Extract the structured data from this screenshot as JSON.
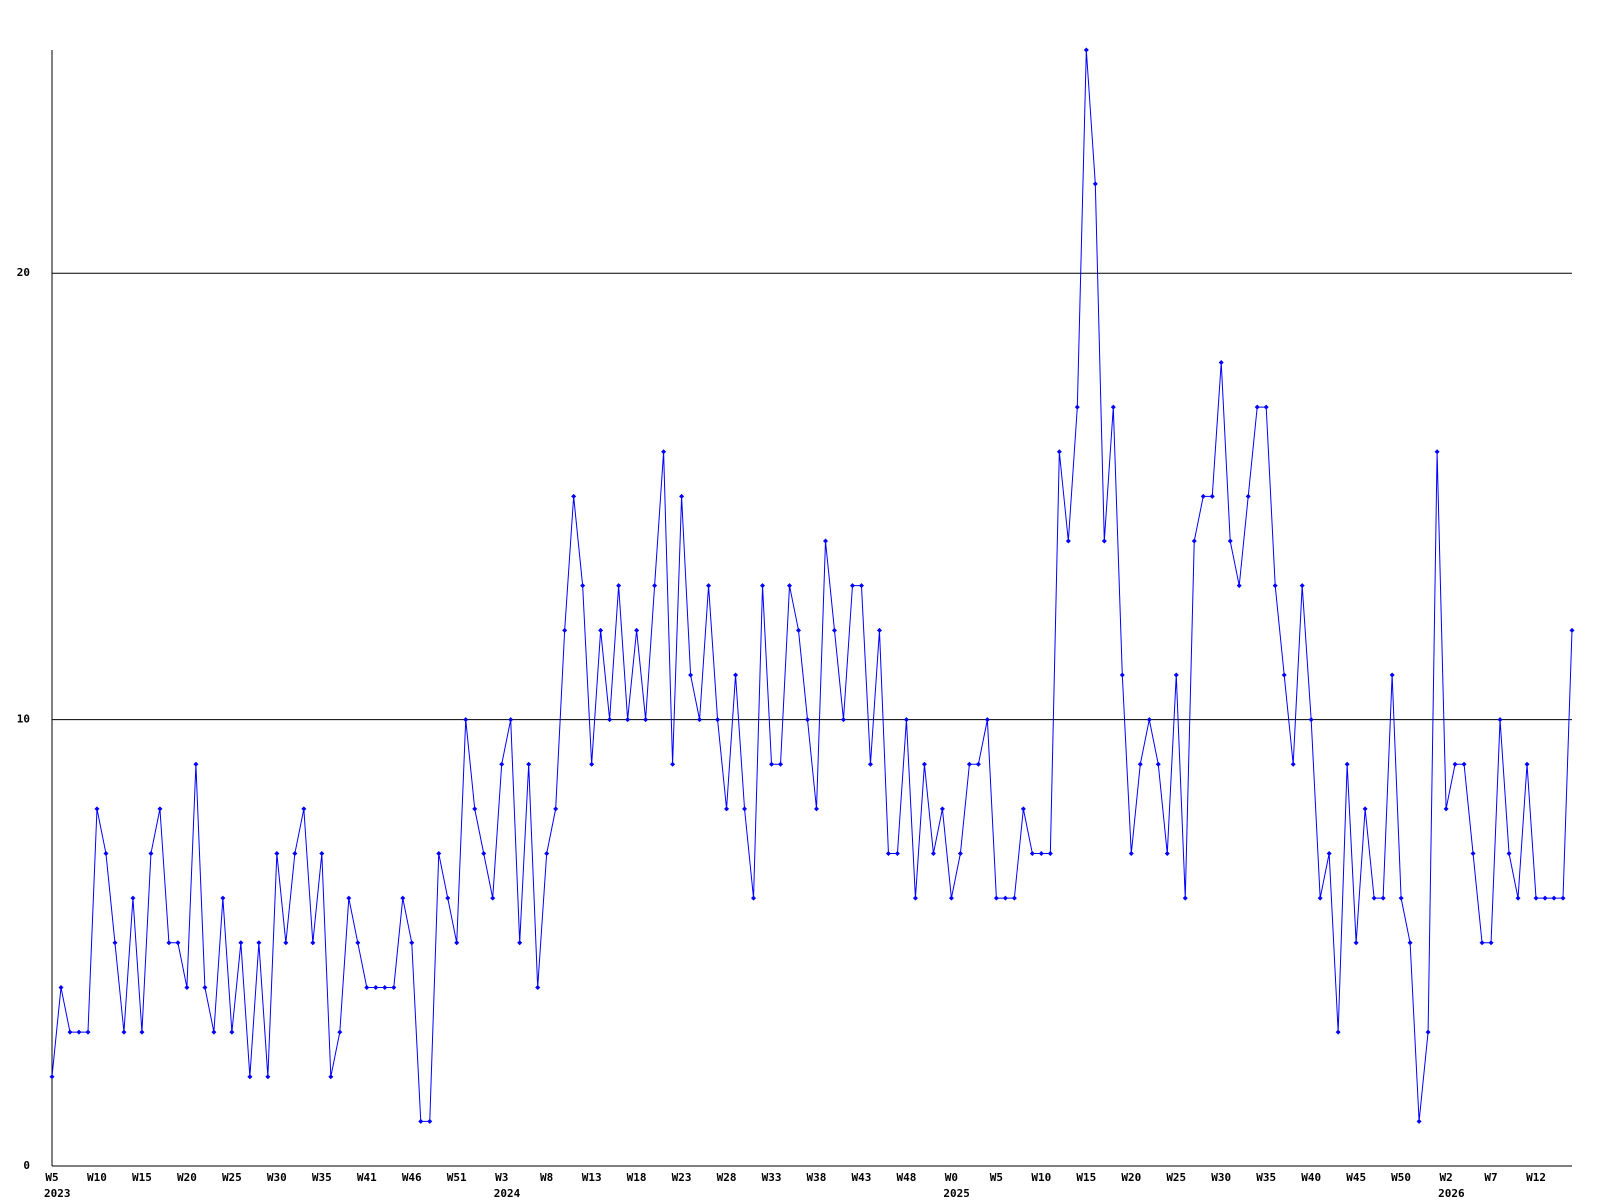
{
  "chart_data": {
    "type": "line",
    "color": "#0000ff",
    "ylim": [
      0,
      25
    ],
    "yticks": [
      0,
      10,
      20
    ],
    "grid": true,
    "categories": [
      "W5",
      null,
      null,
      null,
      null,
      "W10",
      null,
      null,
      null,
      null,
      "W15",
      null,
      null,
      null,
      null,
      "W20",
      null,
      null,
      null,
      null,
      "W25",
      null,
      null,
      null,
      null,
      "W30",
      null,
      null,
      null,
      null,
      "W35",
      null,
      null,
      null,
      null,
      "W41",
      null,
      null,
      null,
      null,
      "W46",
      null,
      null,
      null,
      null,
      "W51",
      null,
      null,
      null,
      null,
      "W3",
      null,
      null,
      null,
      null,
      "W8",
      null,
      null,
      null,
      null,
      "W13",
      null,
      null,
      null,
      null,
      "W18",
      null,
      null,
      null,
      null,
      "W23",
      null,
      null,
      null,
      null,
      "W28",
      null,
      null,
      null,
      null,
      "W33",
      null,
      null,
      null,
      null,
      "W38",
      null,
      null,
      null,
      null,
      "W43",
      null,
      null,
      null,
      null,
      "W48",
      null,
      null,
      null,
      null,
      "W0",
      null,
      null,
      null,
      null,
      "W5",
      null,
      null,
      null,
      null,
      "W10",
      null,
      null,
      null,
      null,
      "W15",
      null,
      null,
      null,
      null,
      "W20",
      null,
      null,
      null,
      null,
      "W25",
      null,
      null,
      null,
      null,
      "W30",
      null,
      null,
      null,
      null,
      "W35",
      null,
      null,
      null,
      null,
      "W40",
      null,
      null,
      null,
      null,
      "W45",
      null,
      null,
      null,
      null,
      "W50",
      null,
      null,
      null,
      null,
      "W2",
      null,
      null,
      null,
      null,
      "W7",
      null,
      null,
      null,
      null,
      "W12",
      null,
      null,
      null,
      null
    ],
    "category_years": [
      "2023",
      null,
      null,
      null,
      null,
      null,
      null,
      null,
      null,
      null,
      null,
      null,
      null,
      null,
      null,
      null,
      null,
      null,
      null,
      null,
      null,
      null,
      null,
      null,
      null,
      null,
      null,
      null,
      null,
      null,
      null,
      null,
      null,
      null,
      null,
      null,
      null,
      null,
      null,
      null,
      null,
      null,
      null,
      null,
      null,
      null,
      null,
      null,
      null,
      null,
      "2024",
      null,
      null,
      null,
      null,
      null,
      null,
      null,
      null,
      null,
      null,
      null,
      null,
      null,
      null,
      null,
      null,
      null,
      null,
      null,
      null,
      null,
      null,
      null,
      null,
      null,
      null,
      null,
      null,
      null,
      null,
      null,
      null,
      null,
      null,
      null,
      null,
      null,
      null,
      null,
      null,
      null,
      null,
      null,
      null,
      null,
      null,
      null,
      null,
      null,
      "2025",
      null,
      null,
      null,
      null,
      null,
      null,
      null,
      null,
      null,
      null,
      null,
      null,
      null,
      null,
      null,
      null,
      null,
      null,
      null,
      null,
      null,
      null,
      null,
      null,
      null,
      null,
      null,
      null,
      null,
      null,
      null,
      null,
      null,
      null,
      null,
      null,
      null,
      null,
      null,
      null,
      null,
      null,
      null,
      null,
      null,
      null,
      null,
      null,
      null,
      null,
      null,
      null,
      null,
      null,
      "2026",
      null,
      null,
      null,
      null,
      null,
      null,
      null,
      null,
      null,
      null,
      null,
      null,
      null,
      null
    ],
    "values": [
      2,
      4,
      3,
      3,
      3,
      8,
      7,
      5,
      3,
      6,
      3,
      7,
      8,
      5,
      5,
      4,
      9,
      4,
      3,
      6,
      3,
      5,
      2,
      5,
      2,
      7,
      5,
      7,
      8,
      5,
      7,
      2,
      3,
      6,
      5,
      4,
      4,
      4,
      4,
      6,
      5,
      1,
      1,
      7,
      6,
      5,
      10,
      8,
      7,
      6,
      9,
      10,
      5,
      9,
      4,
      7,
      8,
      12,
      15,
      13,
      9,
      12,
      10,
      13,
      10,
      12,
      10,
      13,
      16,
      9,
      15,
      11,
      10,
      13,
      10,
      8,
      11,
      8,
      6,
      13,
      9,
      9,
      13,
      12,
      10,
      8,
      14,
      12,
      10,
      13,
      13,
      9,
      12,
      7,
      7,
      10,
      6,
      9,
      7,
      8,
      6,
      7,
      9,
      9,
      10,
      6,
      6,
      6,
      8,
      7,
      7,
      7,
      16,
      14,
      17,
      25,
      22,
      14,
      17,
      11,
      7,
      9,
      10,
      9,
      7,
      11,
      6,
      14,
      15,
      15,
      18,
      14,
      13,
      15,
      17,
      17,
      13,
      11,
      9,
      13,
      10,
      6,
      7,
      3,
      9,
      5,
      8,
      6,
      6,
      11,
      6,
      5,
      1,
      3,
      16,
      8,
      9,
      9,
      7,
      5,
      5,
      10,
      7,
      6,
      9,
      6,
      6,
      6,
      6,
      12
    ]
  }
}
